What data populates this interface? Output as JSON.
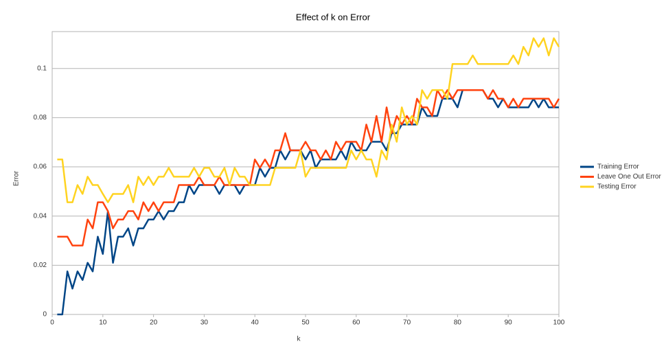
{
  "chart_data": {
    "type": "line",
    "title": "Effect of k on Error",
    "x_label": "k",
    "y_label": "Error",
    "x": [
      1,
      2,
      3,
      4,
      5,
      6,
      7,
      8,
      9,
      10,
      11,
      12,
      13,
      14,
      15,
      16,
      17,
      18,
      19,
      20,
      21,
      22,
      23,
      24,
      25,
      26,
      27,
      28,
      29,
      30,
      31,
      32,
      33,
      34,
      35,
      36,
      37,
      38,
      39,
      40,
      41,
      42,
      43,
      44,
      45,
      46,
      47,
      48,
      49,
      50,
      51,
      52,
      53,
      54,
      55,
      56,
      57,
      58,
      59,
      60,
      61,
      62,
      63,
      64,
      65,
      66,
      67,
      68,
      69,
      70,
      71,
      72,
      73,
      74,
      75,
      76,
      77,
      78,
      79,
      80,
      81,
      82,
      83,
      84,
      85,
      86,
      87,
      88,
      89,
      90,
      91,
      92,
      93,
      94,
      95,
      96,
      97,
      98,
      99,
      100
    ],
    "series": [
      {
        "name": "Training Error",
        "color": "#004586",
        "values": [
          0,
          0,
          0.0175,
          0.0105,
          0.0175,
          0.014,
          0.021,
          0.0175,
          0.0316,
          0.0246,
          0.042,
          0.021,
          0.0316,
          0.0316,
          0.035,
          0.028,
          0.035,
          0.035,
          0.0386,
          0.0386,
          0.042,
          0.0386,
          0.042,
          0.042,
          0.0456,
          0.0456,
          0.0526,
          0.049,
          0.0526,
          0.0526,
          0.0526,
          0.0526,
          0.049,
          0.0526,
          0.0526,
          0.0526,
          0.049,
          0.0526,
          0.0526,
          0.0526,
          0.0596,
          0.056,
          0.0596,
          0.0596,
          0.0667,
          0.063,
          0.0667,
          0.0667,
          0.0667,
          0.063,
          0.0667,
          0.0596,
          0.063,
          0.063,
          0.063,
          0.063,
          0.0667,
          0.063,
          0.0702,
          0.0667,
          0.0667,
          0.0667,
          0.0702,
          0.0702,
          0.0702,
          0.0667,
          0.0737,
          0.0737,
          0.0772,
          0.0772,
          0.0772,
          0.0772,
          0.0842,
          0.0807,
          0.0807,
          0.0807,
          0.0877,
          0.0877,
          0.0877,
          0.0842,
          0.0912,
          0.0912,
          0.0912,
          0.0912,
          0.0912,
          0.0877,
          0.0877,
          0.0842,
          0.0877,
          0.0842,
          0.0842,
          0.0842,
          0.0842,
          0.0842,
          0.0877,
          0.0842,
          0.0877,
          0.0842,
          0.0842,
          0.0842
        ]
      },
      {
        "name": "Leave One Out Error",
        "color": "#ff420e",
        "values": [
          0.0316,
          0.0316,
          0.0316,
          0.028,
          0.028,
          0.028,
          0.0386,
          0.035,
          0.0456,
          0.0456,
          0.042,
          0.035,
          0.0386,
          0.0386,
          0.042,
          0.042,
          0.0386,
          0.0456,
          0.042,
          0.0456,
          0.042,
          0.0456,
          0.0456,
          0.0456,
          0.0526,
          0.0526,
          0.0526,
          0.0526,
          0.056,
          0.0526,
          0.0526,
          0.0526,
          0.056,
          0.0526,
          0.0526,
          0.0526,
          0.0526,
          0.0526,
          0.0526,
          0.063,
          0.0596,
          0.063,
          0.0596,
          0.0667,
          0.0667,
          0.0737,
          0.0667,
          0.0667,
          0.0667,
          0.0702,
          0.0667,
          0.0667,
          0.063,
          0.0667,
          0.063,
          0.0702,
          0.0667,
          0.0702,
          0.0702,
          0.0702,
          0.0667,
          0.0772,
          0.0702,
          0.0807,
          0.0702,
          0.0842,
          0.0737,
          0.0807,
          0.0772,
          0.0807,
          0.0772,
          0.0877,
          0.0842,
          0.0842,
          0.0807,
          0.0912,
          0.0877,
          0.0912,
          0.0877,
          0.0912,
          0.0912,
          0.0912,
          0.0912,
          0.0912,
          0.0912,
          0.0877,
          0.0912,
          0.0877,
          0.0877,
          0.0842,
          0.0877,
          0.0842,
          0.0877,
          0.0877,
          0.0877,
          0.0877,
          0.0877,
          0.0877,
          0.0842,
          0.0877
        ]
      },
      {
        "name": "Testing Error",
        "color": "#ffd320",
        "values": [
          0.063,
          0.063,
          0.0456,
          0.0456,
          0.0526,
          0.049,
          0.056,
          0.0526,
          0.0526,
          0.049,
          0.0456,
          0.049,
          0.049,
          0.049,
          0.0526,
          0.0456,
          0.056,
          0.0526,
          0.056,
          0.0526,
          0.056,
          0.056,
          0.0596,
          0.056,
          0.056,
          0.056,
          0.056,
          0.0596,
          0.056,
          0.0596,
          0.0596,
          0.056,
          0.056,
          0.0596,
          0.0526,
          0.0596,
          0.056,
          0.056,
          0.0526,
          0.0526,
          0.0526,
          0.0526,
          0.0526,
          0.0596,
          0.0596,
          0.0596,
          0.0596,
          0.0596,
          0.0667,
          0.056,
          0.0596,
          0.0596,
          0.0596,
          0.0596,
          0.0596,
          0.0596,
          0.0596,
          0.0596,
          0.0667,
          0.063,
          0.0667,
          0.063,
          0.063,
          0.056,
          0.0667,
          0.063,
          0.0772,
          0.0702,
          0.0842,
          0.0772,
          0.0807,
          0.0772,
          0.0912,
          0.0877,
          0.0912,
          0.0912,
          0.0912,
          0.0877,
          0.1018,
          0.1018,
          0.1018,
          0.1018,
          0.1053,
          0.1018,
          0.1018,
          0.1018,
          0.1018,
          0.1018,
          0.1018,
          0.1018,
          0.1053,
          0.1018,
          0.1088,
          0.1053,
          0.1123,
          0.1088,
          0.1123,
          0.1053,
          0.1123,
          0.1088
        ]
      }
    ],
    "xlim": [
      0,
      100
    ],
    "xticks": [
      0,
      10,
      20,
      30,
      40,
      50,
      60,
      70,
      80,
      90,
      100
    ],
    "ylim": [
      0,
      0.115
    ],
    "yticks": [
      0,
      0.02,
      0.04,
      0.06,
      0.08,
      0.1
    ],
    "grid": true,
    "legend": "right"
  }
}
